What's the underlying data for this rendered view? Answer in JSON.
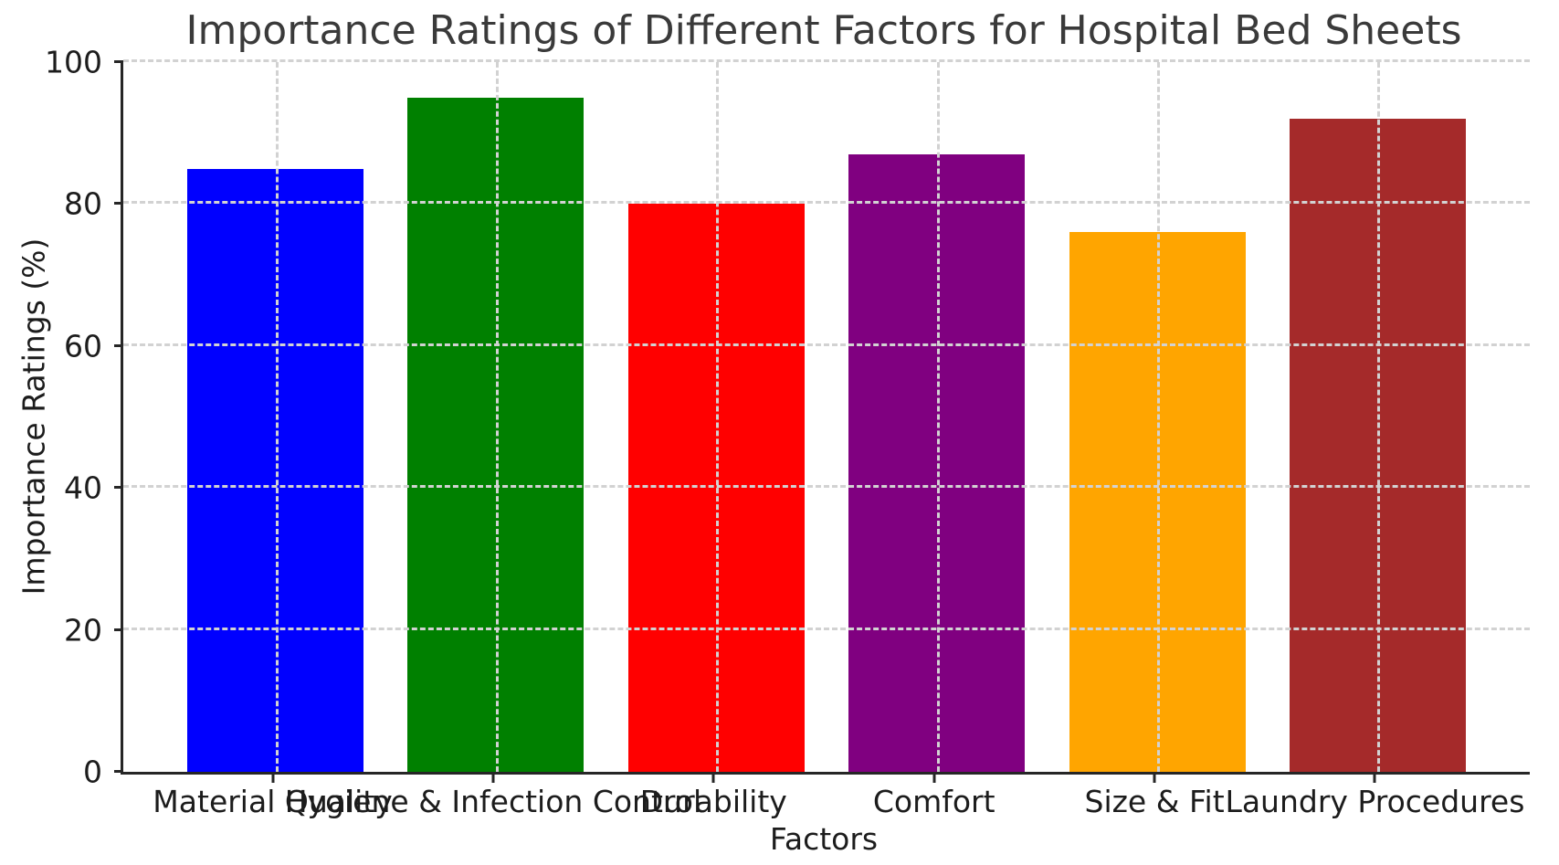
{
  "figure": {
    "background": "#ffffff"
  },
  "chart_data": {
    "type": "bar",
    "title": "Importance Ratings of Different Factors for Hospital Bed Sheets",
    "xlabel": "Factors",
    "ylabel": "Importance Ratings (%)",
    "categories": [
      "Material Quality",
      "Hygiene & Infection Control",
      "Durability",
      "Comfort",
      "Size & Fit",
      "Laundry Procedures"
    ],
    "values": [
      85,
      95,
      80,
      87,
      76,
      92
    ],
    "bar_colors": [
      "#0000ff",
      "#008000",
      "#ff0000",
      "#800080",
      "#ffa500",
      "#a52a2a"
    ],
    "ylim": [
      0,
      100
    ],
    "yticks": [
      0,
      20,
      40,
      60,
      80,
      100
    ],
    "grid": "dashed, both axes, drawn over bars",
    "legend": "none"
  },
  "style": {
    "title_color": "#3a3a3a",
    "tick_color": "#1c1c1c",
    "grid_color": "#d2d2d2",
    "spine_color": "#262626"
  }
}
